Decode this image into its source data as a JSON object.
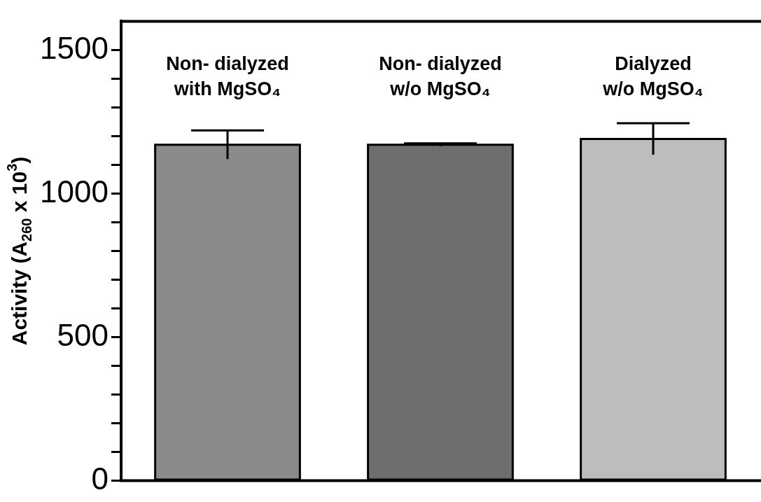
{
  "chart_data": {
    "type": "bar",
    "ylabel": "Activity (A$_{260}$ x 10$^{3}$)",
    "categories": [
      "Non- dialyzed\nwith MgSO₄",
      "Non- dialyzed\nw/o MgSO₄",
      "Dialyzed\nw/o MgSO₄"
    ],
    "values": [
      1170,
      1170,
      1190
    ],
    "errors": [
      50,
      5,
      55
    ],
    "colors": [
      "#8a8a8a",
      "#6e6e6e",
      "#bdbdbd"
    ],
    "ylim": [
      0,
      1600
    ],
    "yticks": [
      0,
      {
        "value": 100,
        "label": null
      },
      {
        "value": 200,
        "label": null
      },
      {
        "value": 300,
        "label": null
      },
      {
        "value": 400,
        "label": null
      },
      500,
      {
        "value": 600,
        "label": null
      },
      {
        "value": 700,
        "label": null
      },
      {
        "value": 800,
        "label": null
      },
      {
        "value": 900,
        "label": null
      },
      1000,
      {
        "value": 1100,
        "label": null
      },
      {
        "value": 1200,
        "label": null
      },
      {
        "value": 1300,
        "label": null
      },
      {
        "value": 1400,
        "label": null
      },
      1500
    ],
    "grid": false,
    "legend": false
  }
}
